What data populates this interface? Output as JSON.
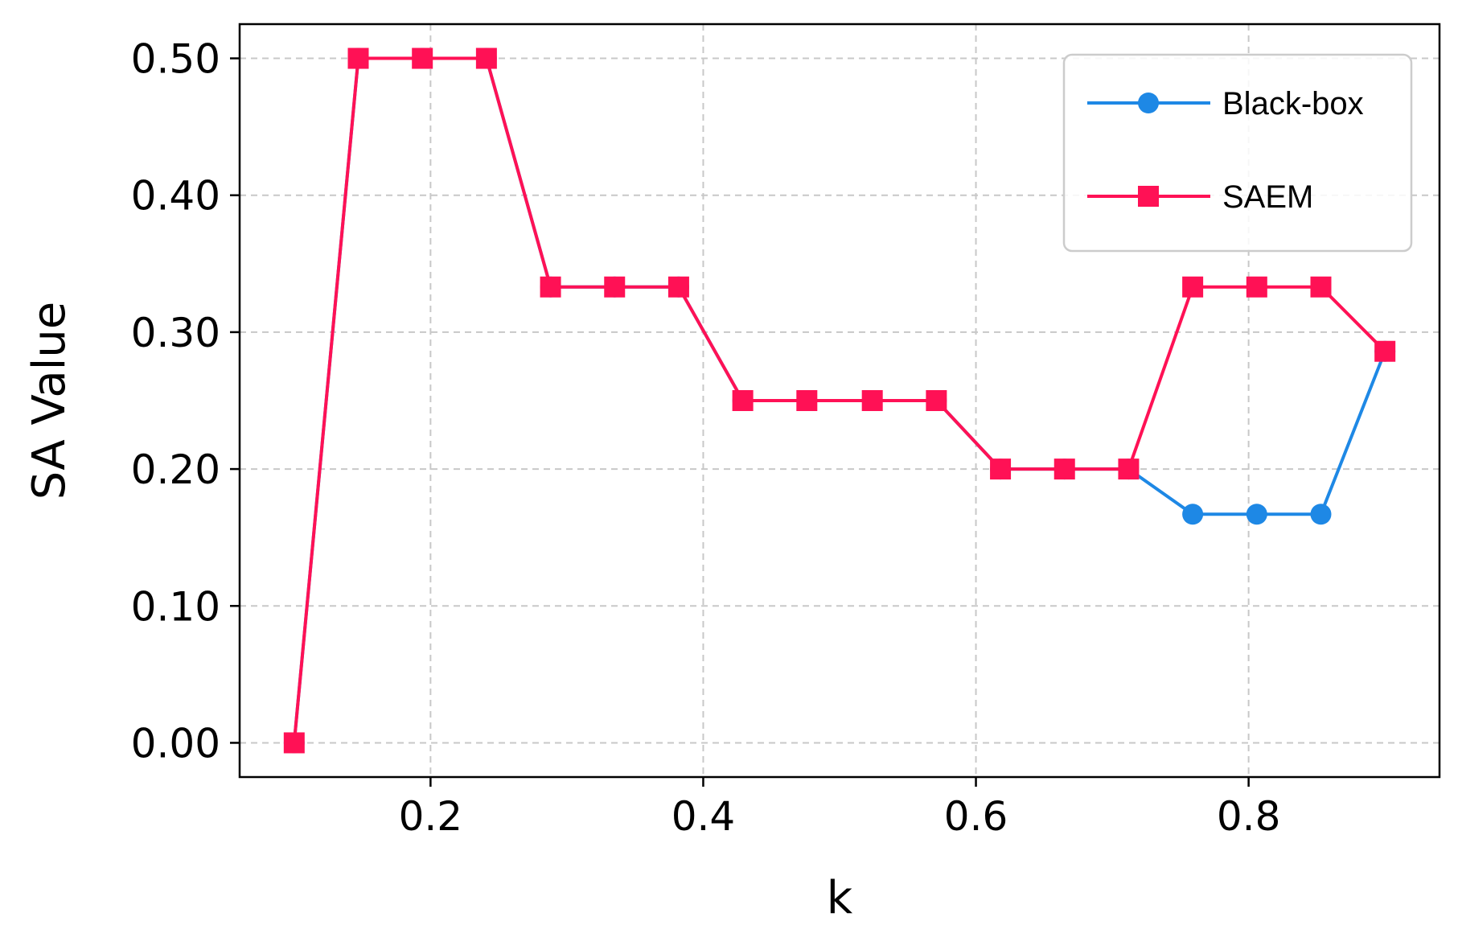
{
  "chart_data": {
    "type": "line",
    "title": "",
    "xlabel": "k",
    "ylabel": "SA Value",
    "xlim": [
      0.06,
      0.94
    ],
    "ylim": [
      -0.025,
      0.525
    ],
    "xticks": [
      0.2,
      0.4,
      0.6,
      0.8
    ],
    "xtick_labels": [
      "0.2",
      "0.4",
      "0.6",
      "0.8"
    ],
    "yticks": [
      0.0,
      0.1,
      0.2,
      0.3,
      0.4,
      0.5
    ],
    "ytick_labels": [
      "0.00",
      "0.10",
      "0.20",
      "0.30",
      "0.40",
      "0.50"
    ],
    "grid": true,
    "legend_position": "top-right",
    "x": [
      0.1,
      0.147,
      0.194,
      0.241,
      0.288,
      0.335,
      0.382,
      0.429,
      0.476,
      0.524,
      0.571,
      0.618,
      0.665,
      0.712,
      0.759,
      0.806,
      0.853,
      0.9
    ],
    "series": [
      {
        "name": "Black-box",
        "color": "#1e88e5",
        "marker": "circle",
        "values": [
          0.0,
          0.5,
          0.5,
          0.5,
          0.333,
          0.333,
          0.333,
          0.25,
          0.25,
          0.25,
          0.25,
          0.2,
          0.2,
          0.2,
          0.167,
          0.167,
          0.167,
          0.286
        ]
      },
      {
        "name": "SAEM",
        "color": "#ff1155",
        "marker": "square",
        "values": [
          0.0,
          0.5,
          0.5,
          0.5,
          0.333,
          0.333,
          0.333,
          0.25,
          0.25,
          0.25,
          0.25,
          0.2,
          0.2,
          0.2,
          0.333,
          0.333,
          0.333,
          0.286
        ]
      }
    ]
  }
}
